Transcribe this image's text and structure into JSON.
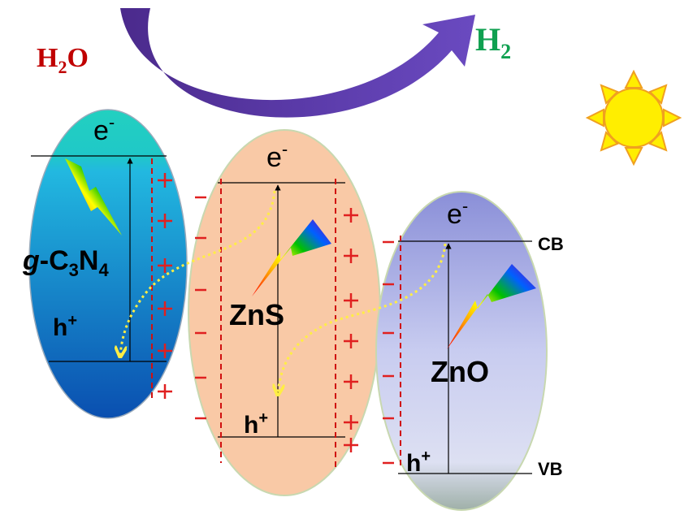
{
  "reaction": {
    "reactant": [
      "H",
      "2",
      "O"
    ],
    "product": [
      "H",
      "2"
    ]
  },
  "semiconductors": [
    {
      "name": [
        "g",
        "-C",
        "3",
        "N",
        "4"
      ],
      "electron": [
        "e",
        "-"
      ],
      "hole": [
        "h",
        "+"
      ]
    },
    {
      "name": [
        "ZnS"
      ],
      "electron": [
        "e",
        "-"
      ],
      "hole": [
        "h",
        "+"
      ]
    },
    {
      "name": [
        "ZnO"
      ],
      "electron": [
        "e",
        "-"
      ],
      "hole": [
        "h",
        "+"
      ]
    }
  ],
  "bands": {
    "conduction": "CB",
    "valence": "VB"
  }
}
